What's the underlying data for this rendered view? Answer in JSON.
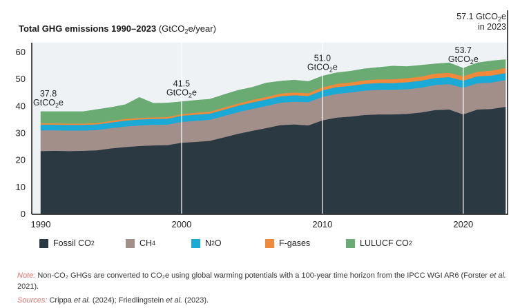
{
  "title": {
    "main": "Total GHG emissions 1990–2023",
    "unit_pre": " (GtCO",
    "unit_sub": "2",
    "unit_post": "e/year)"
  },
  "chart_data": {
    "type": "area",
    "stacked": true,
    "title": "Total GHG emissions 1990–2023 (GtCO2e/year)",
    "xlabel": "",
    "ylabel": "",
    "xlim": [
      1990,
      2023
    ],
    "ylim": [
      0,
      60
    ],
    "yticks": [
      0,
      10,
      20,
      30,
      40,
      50,
      60
    ],
    "xticks": [
      1990,
      2000,
      2010,
      2020
    ],
    "grid": false,
    "legend_position": "bottom",
    "x": [
      1990,
      1991,
      1992,
      1993,
      1994,
      1995,
      1996,
      1997,
      1998,
      1999,
      2000,
      2001,
      2002,
      2003,
      2004,
      2005,
      2006,
      2007,
      2008,
      2009,
      2010,
      2011,
      2012,
      2013,
      2014,
      2015,
      2016,
      2017,
      2018,
      2019,
      2020,
      2021,
      2022,
      2023
    ],
    "series": [
      {
        "name": "Fossil CO2",
        "color": "#2b3a42",
        "values": [
          23.2,
          23.3,
          23.2,
          23.3,
          23.5,
          24.2,
          24.7,
          25.1,
          25.3,
          25.4,
          26.3,
          26.6,
          27.0,
          28.3,
          29.6,
          30.7,
          31.7,
          32.8,
          33.1,
          32.7,
          34.6,
          35.6,
          36.0,
          36.6,
          36.8,
          36.8,
          37.0,
          37.5,
          38.4,
          38.6,
          36.8,
          38.6,
          38.8,
          39.6
        ]
      },
      {
        "name": "CH4",
        "color": "#a38f8a",
        "values": [
          7.7,
          7.6,
          7.6,
          7.5,
          7.5,
          7.5,
          7.6,
          7.6,
          7.6,
          7.6,
          7.7,
          7.8,
          7.8,
          7.9,
          8.0,
          8.1,
          8.2,
          8.3,
          8.4,
          8.6,
          8.7,
          8.8,
          8.9,
          9.0,
          9.1,
          9.1,
          9.1,
          9.2,
          9.3,
          9.4,
          9.9,
          9.7,
          9.8,
          9.9
        ]
      },
      {
        "name": "N2O",
        "color": "#1ba9d6",
        "values": [
          2.1,
          2.1,
          2.1,
          2.1,
          2.1,
          2.1,
          2.2,
          2.2,
          2.2,
          2.2,
          2.3,
          2.3,
          2.3,
          2.3,
          2.4,
          2.4,
          2.4,
          2.4,
          2.4,
          2.3,
          2.4,
          2.5,
          2.5,
          2.5,
          2.5,
          2.5,
          2.6,
          2.6,
          2.6,
          2.6,
          2.6,
          2.6,
          2.6,
          2.6
        ]
      },
      {
        "name": "F-gases",
        "color": "#f08a3a",
        "values": [
          0.5,
          0.5,
          0.5,
          0.5,
          0.5,
          0.6,
          0.6,
          0.6,
          0.6,
          0.6,
          0.6,
          0.7,
          0.7,
          0.8,
          0.8,
          0.9,
          0.9,
          1.0,
          1.0,
          1.0,
          1.1,
          1.2,
          1.2,
          1.3,
          1.4,
          1.4,
          1.5,
          1.5,
          1.6,
          1.6,
          1.6,
          1.7,
          1.8,
          1.9
        ]
      },
      {
        "name": "LULUCF CO2",
        "color": "#6aab74",
        "values": [
          4.3,
          4.3,
          4.4,
          4.4,
          5.0,
          5.0,
          5.3,
          7.6,
          5.2,
          5.2,
          4.6,
          4.6,
          4.6,
          4.8,
          4.9,
          4.7,
          5.2,
          4.6,
          4.6,
          4.4,
          4.2,
          4.1,
          4.2,
          4.3,
          4.4,
          4.9,
          4.3,
          4.2,
          3.6,
          3.7,
          3.0,
          3.3,
          3.6,
          3.1
        ]
      }
    ],
    "annotations": [
      {
        "year": 1990,
        "line1": "37.8",
        "line2_pre": "GtCO",
        "line2_sub": "2",
        "line2_post": "e"
      },
      {
        "year": 2000,
        "line1": "41.5",
        "line2_pre": "GtCO",
        "line2_sub": "2",
        "line2_post": "e"
      },
      {
        "year": 2010,
        "line1": "51.0",
        "line2_pre": "GtCO",
        "line2_sub": "2",
        "line2_post": "e"
      },
      {
        "year": 2020,
        "line1": "53.7",
        "line2_pre": "GtCO",
        "line2_sub": "2",
        "line2_post": "e"
      },
      {
        "year": 2023,
        "line1_pre": "57.1 GtCO",
        "line1_sub": "2",
        "line1_post": "e",
        "line2": "in 2023"
      }
    ]
  },
  "legend": [
    {
      "pre": "Fossil CO",
      "sub": "2",
      "post": "",
      "color": "#2b3a42"
    },
    {
      "pre": "CH",
      "sub": "4",
      "post": "",
      "color": "#a38f8a"
    },
    {
      "pre": "N",
      "sub": "2",
      "post": "O",
      "color": "#1ba9d6"
    },
    {
      "pre": "F-gases",
      "sub": "",
      "post": "",
      "color": "#f08a3a"
    },
    {
      "pre": "LULUCF CO",
      "sub": "2",
      "post": "",
      "color": "#6aab74"
    }
  ],
  "note": {
    "label": "Note:",
    "text": " Non-CO₂ GHGs are converted to CO₂e using global warming potentials with a 100-year time horizon from the IPCC WGI AR6 (Forster ",
    "etal": "et al.",
    "tail": " 2021)."
  },
  "sources": {
    "label": "Sources:",
    "a": " Crippa ",
    "etal1": "et al.",
    "b": " (2024); Friedlingstein ",
    "etal2": "et al.",
    "c": " (2023)."
  }
}
